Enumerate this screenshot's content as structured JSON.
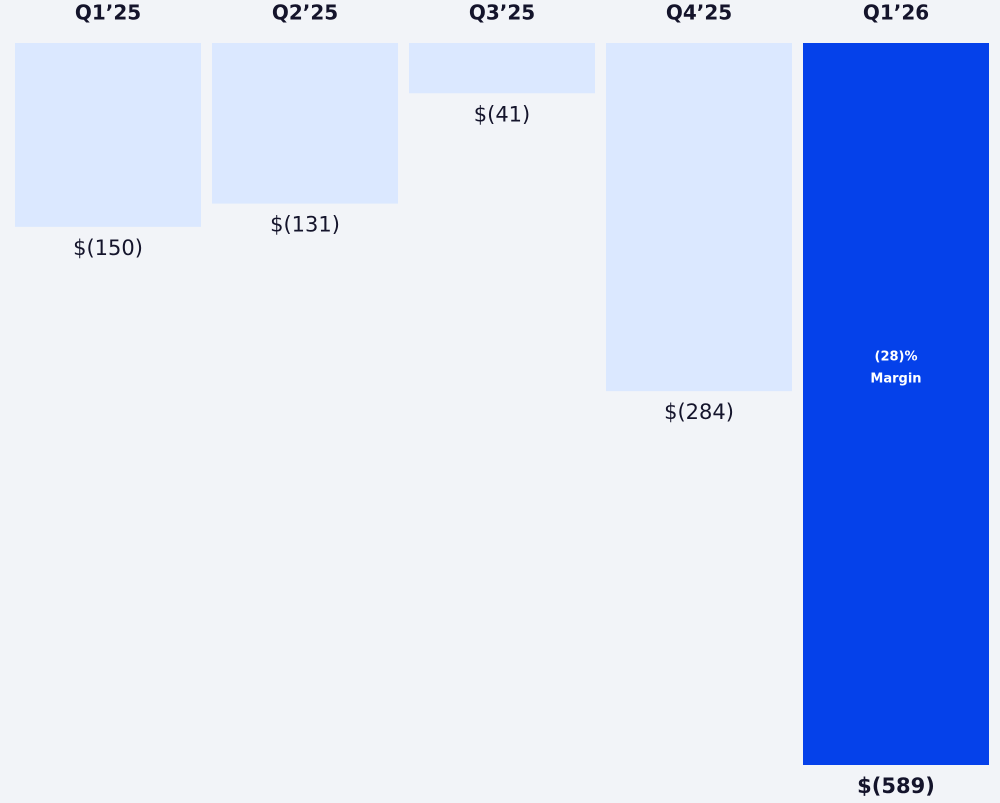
{
  "chart_data": {
    "type": "bar",
    "categories": [
      "Q1’25",
      "Q2’25",
      "Q3’25",
      "Q4’25",
      "Q1’26"
    ],
    "values": [
      -150,
      -131,
      -41,
      -284,
      -589
    ],
    "value_labels": [
      "$(150)",
      "$(131)",
      "$(41)",
      "$(284)",
      "$(589)"
    ],
    "colors": [
      "#dbe8ff",
      "#dbe8ff",
      "#dbe8ff",
      "#dbe8ff",
      "#0541ea"
    ],
    "annotation": [
      "(28)%",
      "Margin"
    ]
  }
}
